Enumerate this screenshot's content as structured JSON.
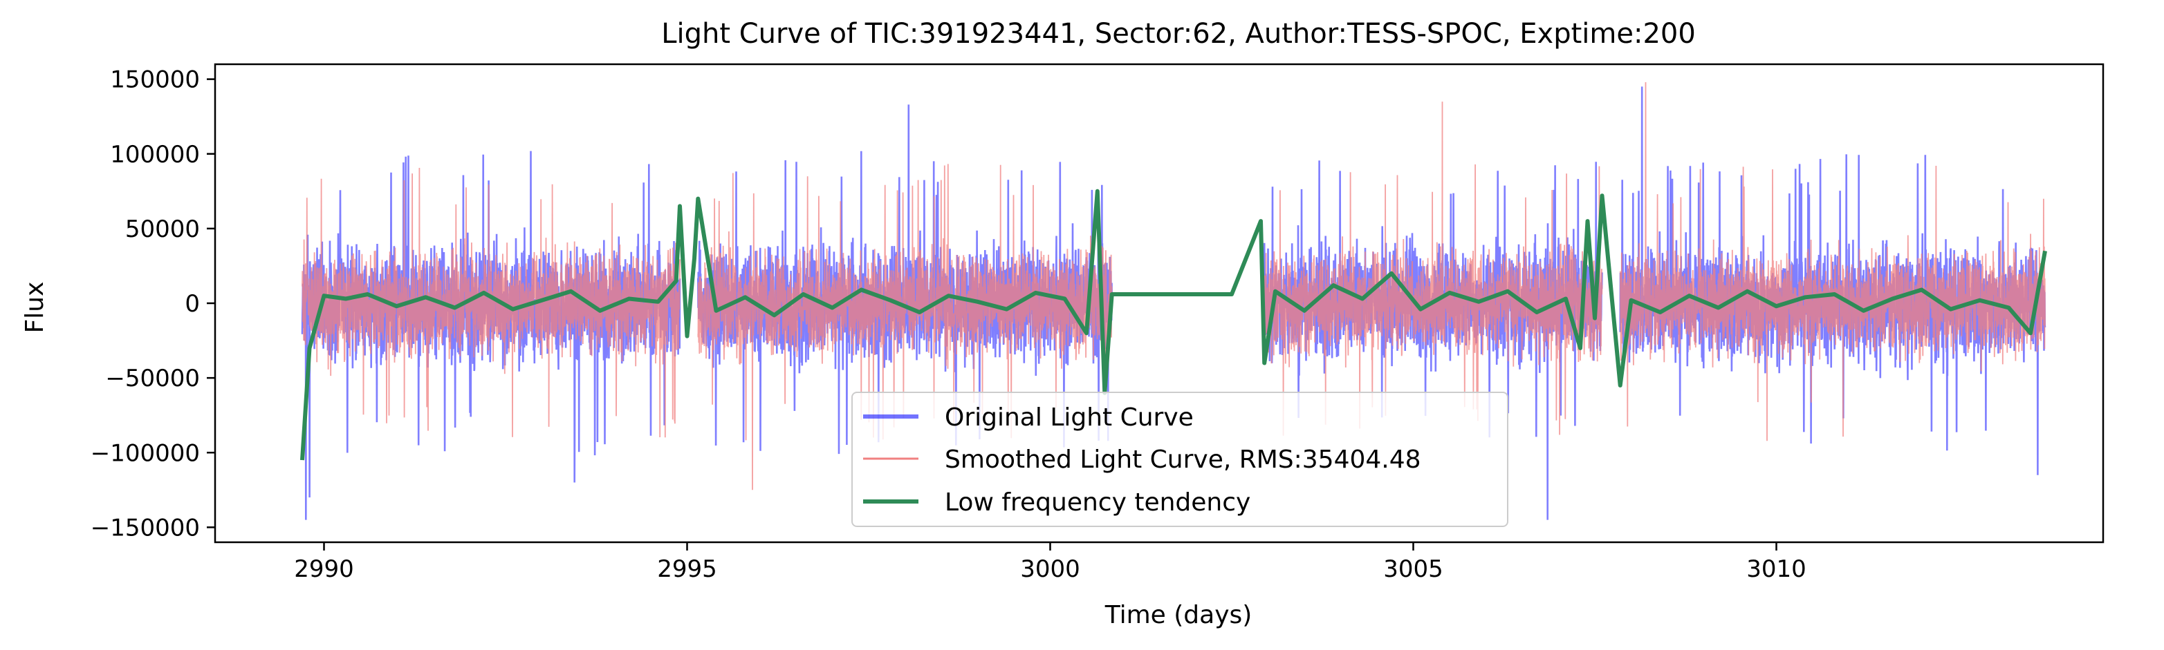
{
  "chart_data": {
    "type": "line",
    "title": "Light Curve of TIC:391923441, Sector:62, Author:TESS-SPOC, Exptime:200",
    "xlabel": "Time (days)",
    "ylabel": "Flux",
    "xlim": [
      2988.5,
      3014.5
    ],
    "ylim": [
      -160000,
      160000
    ],
    "x_ticks": [
      2990,
      2995,
      3000,
      3005,
      3010
    ],
    "y_ticks": [
      -150000,
      -100000,
      -50000,
      0,
      50000,
      100000,
      150000
    ],
    "x_tick_labels": [
      "2990",
      "2995",
      "3000",
      "3005",
      "3010"
    ],
    "y_tick_labels": [
      "−150000",
      "−100000",
      "−50000",
      "0",
      "50000",
      "100000",
      "150000"
    ],
    "grid": false,
    "legend_position": "lower-center",
    "segments": [
      [
        2989.7,
        2994.9
      ],
      [
        2995.15,
        3000.85
      ],
      [
        3002.95,
        3007.6
      ],
      [
        3007.85,
        3013.7
      ]
    ],
    "series": [
      {
        "name": "Original Light Curve",
        "color": "#0000ff",
        "style": "noise band",
        "amplitude_typical": 60000,
        "extremes": [
          {
            "x": 2989.75,
            "y": -145000
          },
          {
            "x": 2989.8,
            "y": -130000
          },
          {
            "x": 2998.05,
            "y": 133000
          },
          {
            "x": 3006.85,
            "y": -145000
          },
          {
            "x": 3008.15,
            "y": 145000
          },
          {
            "x": 3013.6,
            "y": -115000
          },
          {
            "x": 2993.45,
            "y": -120000
          }
        ]
      },
      {
        "name": "Smoothed Light Curve, RMS:35404.48",
        "color": "#f08080",
        "style": "noise band",
        "amplitude_typical": 55000,
        "extremes": [
          {
            "x": 3005.4,
            "y": 135000
          },
          {
            "x": 3008.2,
            "y": 148000
          },
          {
            "x": 2995.9,
            "y": -125000
          }
        ]
      },
      {
        "name": "Low frequency tendency",
        "color": "#2e8b57",
        "style": "smooth line",
        "x": [
          2989.7,
          2989.8,
          2990.0,
          2990.3,
          2990.6,
          2991.0,
          2991.4,
          2991.8,
          2992.2,
          2992.6,
          2993.0,
          2993.4,
          2993.8,
          2994.2,
          2994.6,
          2994.85,
          2994.9,
          2995.0,
          2995.1,
          2995.15,
          2995.4,
          2995.8,
          2996.2,
          2996.6,
          2997.0,
          2997.4,
          2997.8,
          2998.2,
          2998.6,
          2999.0,
          2999.4,
          2999.8,
          3000.2,
          3000.5,
          3000.65,
          3000.75,
          3000.85,
          3001.5,
          3002.5,
          3002.9,
          3002.95,
          3003.1,
          3003.5,
          3003.9,
          3004.3,
          3004.7,
          3005.1,
          3005.5,
          3005.9,
          3006.3,
          3006.7,
          3007.1,
          3007.3,
          3007.4,
          3007.5,
          3007.6,
          3007.85,
          3008.0,
          3008.4,
          3008.8,
          3009.2,
          3009.6,
          3010.0,
          3010.4,
          3010.8,
          3011.2,
          3011.6,
          3012.0,
          3012.4,
          3012.8,
          3013.2,
          3013.5,
          3013.7
        ],
        "y": [
          -105000,
          -30000,
          5000,
          3000,
          6000,
          -2000,
          4000,
          -3000,
          7000,
          -4000,
          2000,
          8000,
          -5000,
          3000,
          1000,
          15000,
          65000,
          -22000,
          30000,
          70000,
          -5000,
          4000,
          -8000,
          6000,
          -3000,
          9000,
          2000,
          -6000,
          5000,
          1000,
          -4000,
          7000,
          3000,
          -20000,
          75000,
          -60000,
          6000,
          6000,
          6000,
          55000,
          -40000,
          8000,
          -5000,
          12000,
          3000,
          20000,
          -4000,
          7000,
          1000,
          8000,
          -6000,
          3000,
          -30000,
          55000,
          -10000,
          72000,
          -55000,
          2000,
          -6000,
          5000,
          -3000,
          8000,
          -2000,
          4000,
          6000,
          -5000,
          3000,
          9000,
          -4000,
          2000,
          -3000,
          -20000,
          35000
        ]
      }
    ]
  }
}
